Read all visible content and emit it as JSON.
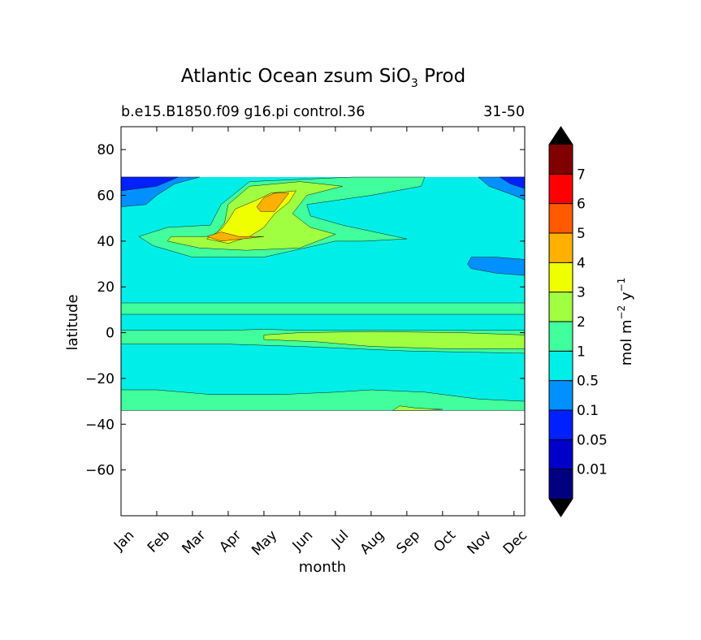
{
  "chart_data": {
    "type": "contourf",
    "title_main": "Atlantic Ocean zsum SiO",
    "title_sub": "3",
    "title_end": " Prod",
    "subtitle_left": "b.e15.B1850.f09 g16.pi control.36",
    "subtitle_right": "31-50",
    "xlabel": "month",
    "ylabel": "latitude",
    "x_categories": [
      "Jan",
      "Feb",
      "Mar",
      "Apr",
      "May",
      "Jun",
      "Jul",
      "Aug",
      "Sep",
      "Oct",
      "Nov",
      "Dec"
    ],
    "xlim": [
      0,
      11.3
    ],
    "ylim": [
      -80,
      90
    ],
    "yticks": [
      80,
      60,
      40,
      20,
      0,
      -20,
      -40,
      -60
    ],
    "ytick_labels": [
      "80",
      "60",
      "40",
      "20",
      "0",
      "−20",
      "−40",
      "−60"
    ],
    "data_extent_lat": [
      -34,
      68
    ],
    "colorbar": {
      "label_main": "mol m",
      "label_exp1": "−2",
      "label_mid": " y",
      "label_exp2": "−1",
      "levels": [
        0,
        0.01,
        0.05,
        0.1,
        0.5,
        1,
        2,
        3,
        4,
        5,
        6,
        7,
        8
      ],
      "tick_labels": [
        "0.01",
        "0.05",
        "0.1",
        "0.5",
        "1",
        "2",
        "3",
        "4",
        "5",
        "6",
        "7"
      ],
      "colors": [
        "#000080",
        "#0000c8",
        "#0020ff",
        "#0090ff",
        "#00eee8",
        "#40ff9c",
        "#a0ff40",
        "#f0ff00",
        "#ffb000",
        "#ff5a00",
        "#ff0000",
        "#800000"
      ],
      "under_color": "#000000",
      "over_color": "#000000"
    },
    "regions": [
      {
        "level": 4,
        "polygon": [
          [
            0,
            68
          ],
          [
            11.3,
            68
          ],
          [
            11.3,
            -34
          ],
          [
            0,
            -34
          ]
        ]
      },
      {
        "level": 5,
        "polygon": [
          [
            1.3,
            46
          ],
          [
            2.5,
            47
          ],
          [
            2.8,
            56
          ],
          [
            3.6,
            66
          ],
          [
            6.5,
            68
          ],
          [
            8.5,
            68
          ],
          [
            8.4,
            64
          ],
          [
            7.0,
            60
          ],
          [
            5.2,
            56
          ],
          [
            5.3,
            51
          ],
          [
            6.2,
            47
          ],
          [
            8.0,
            41
          ],
          [
            6.8,
            40
          ],
          [
            6.0,
            40
          ],
          [
            4.0,
            33
          ],
          [
            2.0,
            33
          ],
          [
            0.9,
            38
          ],
          [
            0.5,
            42
          ]
        ]
      },
      {
        "level": 5,
        "polygon": [
          [
            0,
            13
          ],
          [
            11.3,
            13
          ],
          [
            11.3,
            8
          ],
          [
            0,
            8
          ]
        ]
      },
      {
        "level": 5,
        "polygon": [
          [
            0,
            1
          ],
          [
            3.0,
            1
          ],
          [
            4.0,
            1.5
          ],
          [
            5.0,
            1
          ],
          [
            11.3,
            1
          ],
          [
            11.3,
            -9
          ],
          [
            8.0,
            -8
          ],
          [
            5.0,
            -6
          ],
          [
            3.0,
            -5
          ],
          [
            0,
            -5
          ]
        ]
      },
      {
        "level": 5,
        "polygon": [
          [
            0,
            -25
          ],
          [
            1.0,
            -25
          ],
          [
            2.5,
            -27
          ],
          [
            4.5,
            -27
          ],
          [
            6.0,
            -26
          ],
          [
            7.0,
            -25
          ],
          [
            8.5,
            -26
          ],
          [
            10.0,
            -29
          ],
          [
            11.3,
            -30
          ],
          [
            11.3,
            -34
          ],
          [
            0,
            -34
          ]
        ]
      },
      {
        "level": 6,
        "polygon": [
          [
            1.4,
            42
          ],
          [
            2.6,
            42
          ],
          [
            2.9,
            48
          ],
          [
            3.0,
            56
          ],
          [
            3.6,
            64
          ],
          [
            5.0,
            66
          ],
          [
            6.2,
            64
          ],
          [
            5.2,
            60
          ],
          [
            4.8,
            52
          ],
          [
            5.3,
            46
          ],
          [
            6.0,
            43
          ],
          [
            5.0,
            37
          ],
          [
            3.5,
            36
          ],
          [
            2.2,
            37
          ],
          [
            1.3,
            40
          ]
        ]
      },
      {
        "level": 6,
        "polygon": [
          [
            4.0,
            -1
          ],
          [
            5.0,
            0
          ],
          [
            7.0,
            0.5
          ],
          [
            9.5,
            0
          ],
          [
            11.3,
            -1
          ],
          [
            11.3,
            -7
          ],
          [
            9.0,
            -7
          ],
          [
            7.0,
            -6
          ],
          [
            5.5,
            -4
          ],
          [
            4.0,
            -3
          ]
        ]
      },
      {
        "level": 6,
        "polygon": [
          [
            7.8,
            -32
          ],
          [
            8.3,
            -33
          ],
          [
            9.0,
            -33.5
          ],
          [
            8.6,
            -34
          ],
          [
            7.6,
            -34
          ]
        ]
      },
      {
        "level": 7,
        "polygon": [
          [
            2.4,
            41
          ],
          [
            2.8,
            45
          ],
          [
            3.0,
            49
          ],
          [
            3.2,
            54
          ],
          [
            3.8,
            58
          ],
          [
            4.2,
            61
          ],
          [
            4.9,
            62
          ],
          [
            4.7,
            57
          ],
          [
            4.3,
            52
          ],
          [
            4.0,
            46
          ],
          [
            3.6,
            42
          ],
          [
            3.0,
            39
          ]
        ]
      },
      {
        "level": 8,
        "polygon": [
          [
            2.4,
            42
          ],
          [
            2.8,
            44
          ],
          [
            3.3,
            42
          ],
          [
            4.0,
            42
          ],
          [
            3.4,
            41
          ],
          [
            2.8,
            40
          ]
        ]
      },
      {
        "level": 8,
        "polygon": [
          [
            3.8,
            55
          ],
          [
            4.0,
            59
          ],
          [
            4.3,
            61
          ],
          [
            4.7,
            61
          ],
          [
            4.5,
            57
          ],
          [
            4.3,
            53
          ],
          [
            3.9,
            53
          ]
        ]
      },
      {
        "level": 3,
        "polygon": [
          [
            0,
            68
          ],
          [
            2.2,
            68
          ],
          [
            1.5,
            65
          ],
          [
            1.0,
            60
          ],
          [
            0.7,
            56
          ],
          [
            0,
            55
          ]
        ]
      },
      {
        "level": 2,
        "polygon": [
          [
            0,
            68
          ],
          [
            1.6,
            68
          ],
          [
            1.0,
            64
          ],
          [
            0,
            62
          ]
        ]
      },
      {
        "level": 3,
        "polygon": [
          [
            11.3,
            68
          ],
          [
            10.0,
            68
          ],
          [
            10.3,
            64
          ],
          [
            11.0,
            60
          ],
          [
            11.3,
            58
          ]
        ]
      },
      {
        "level": 2,
        "polygon": [
          [
            11.3,
            68
          ],
          [
            10.6,
            68
          ],
          [
            10.9,
            65
          ],
          [
            11.3,
            63
          ]
        ]
      },
      {
        "level": 3,
        "polygon": [
          [
            9.8,
            33
          ],
          [
            10.5,
            33
          ],
          [
            11.3,
            32
          ],
          [
            11.3,
            25
          ],
          [
            10.5,
            26
          ],
          [
            9.8,
            28
          ],
          [
            9.7,
            30
          ]
        ]
      }
    ]
  }
}
